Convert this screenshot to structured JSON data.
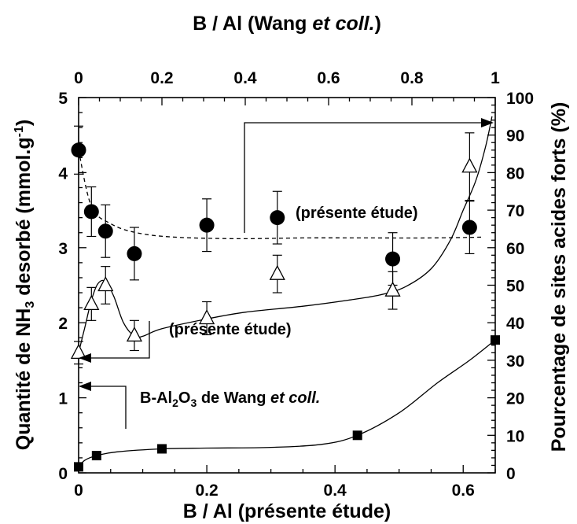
{
  "chart_data": {
    "type": "scatter",
    "xlabel_bottom": "B / Al (présente étude)",
    "xlabel_top_main": "B / Al (Wang ",
    "xlabel_top_italic": "et coll.",
    "xlabel_top_end": ")",
    "ylabel_left_a": "Quantité de NH",
    "ylabel_left_sub": "3",
    "ylabel_left_b": " desorbé (mmol.g",
    "ylabel_left_sup": "-1",
    "ylabel_left_c": ")",
    "ylabel_right": "Pourcentage de sites acides forts (%)",
    "xlim_bottom": [
      0,
      0.65
    ],
    "xlim_top": [
      0,
      1
    ],
    "ylim_left": [
      0,
      5
    ],
    "ylim_right": [
      0,
      100
    ],
    "x_bottom_ticks": [
      "0",
      "0.2",
      "0.4",
      "0.6"
    ],
    "x_top_ticks": [
      "0",
      "0.2",
      "0.4",
      "0.6",
      "0.8",
      "1"
    ],
    "y_left_ticks": [
      "0",
      "1",
      "2",
      "3",
      "4",
      "5"
    ],
    "y_right_ticks": [
      "0",
      "10",
      "20",
      "30",
      "40",
      "50",
      "60",
      "70",
      "80",
      "90",
      "100"
    ],
    "series": [
      {
        "marker": "filled-circle",
        "axis": "left",
        "points": [
          {
            "x": 0.0,
            "y": 4.3,
            "err": 0.32
          },
          {
            "x": 0.02,
            "y": 3.48,
            "err": 0.33
          },
          {
            "x": 0.042,
            "y": 3.22,
            "err": 0.35
          },
          {
            "x": 0.087,
            "y": 2.92,
            "err": 0.35
          },
          {
            "x": 0.2,
            "y": 3.3,
            "err": 0.35
          },
          {
            "x": 0.31,
            "y": 3.4,
            "err": 0.35
          },
          {
            "x": 0.49,
            "y": 2.85,
            "err": 0.35
          },
          {
            "x": 0.61,
            "y": 3.27,
            "err": 0.35
          }
        ],
        "fit_line": "dashed",
        "fit": [
          [
            0.0,
            4.3
          ],
          [
            0.02,
            3.55
          ],
          [
            0.05,
            3.32
          ],
          [
            0.09,
            3.2
          ],
          [
            0.15,
            3.14
          ],
          [
            0.25,
            3.12
          ],
          [
            0.35,
            3.13
          ],
          [
            0.45,
            3.13
          ],
          [
            0.55,
            3.13
          ],
          [
            0.63,
            3.14
          ]
        ]
      },
      {
        "marker": "open-triangle",
        "axis": "left",
        "points": [
          {
            "x": 0.0,
            "y": 1.6,
            "err": 0.15
          },
          {
            "x": 0.02,
            "y": 2.25,
            "err": 0.22
          },
          {
            "x": 0.042,
            "y": 2.5,
            "err": 0.25
          },
          {
            "x": 0.087,
            "y": 1.83,
            "err": 0.2
          },
          {
            "x": 0.2,
            "y": 2.06,
            "err": 0.22
          },
          {
            "x": 0.31,
            "y": 2.65,
            "err": 0.25
          },
          {
            "x": 0.49,
            "y": 2.43,
            "err": 0.25
          },
          {
            "x": 0.61,
            "y": 4.08,
            "err": 0.45
          }
        ],
        "fit_line": "solid",
        "fit": [
          [
            0.0,
            1.6
          ],
          [
            0.01,
            1.95
          ],
          [
            0.02,
            2.3
          ],
          [
            0.03,
            2.52
          ],
          [
            0.042,
            2.55
          ],
          [
            0.055,
            2.35
          ],
          [
            0.07,
            2.0
          ],
          [
            0.087,
            1.82
          ],
          [
            0.1,
            1.82
          ],
          [
            0.13,
            1.92
          ],
          [
            0.2,
            2.05
          ],
          [
            0.26,
            2.14
          ],
          [
            0.35,
            2.22
          ],
          [
            0.42,
            2.3
          ],
          [
            0.47,
            2.37
          ],
          [
            0.51,
            2.48
          ],
          [
            0.55,
            2.72
          ],
          [
            0.58,
            3.1
          ],
          [
            0.6,
            3.5
          ],
          [
            0.62,
            3.9
          ],
          [
            0.635,
            4.35
          ],
          [
            0.645,
            4.75
          ]
        ]
      },
      {
        "marker": "filled-square",
        "axis": "left",
        "points": [
          {
            "x": 0.0,
            "y": 0.08
          },
          {
            "x": 0.028,
            "y": 0.23
          },
          {
            "x": 0.13,
            "y": 0.32
          },
          {
            "x": 0.435,
            "y": 0.5
          },
          {
            "x": 0.65,
            "y": 1.77
          }
        ],
        "fit_line": "solid",
        "fit": [
          [
            0.0,
            0.08
          ],
          [
            0.01,
            0.17
          ],
          [
            0.028,
            0.23
          ],
          [
            0.06,
            0.28
          ],
          [
            0.13,
            0.32
          ],
          [
            0.2,
            0.33
          ],
          [
            0.3,
            0.34
          ],
          [
            0.38,
            0.38
          ],
          [
            0.435,
            0.5
          ],
          [
            0.5,
            0.8
          ],
          [
            0.56,
            1.2
          ],
          [
            0.61,
            1.5
          ],
          [
            0.65,
            1.77
          ]
        ]
      }
    ],
    "annotations": [
      {
        "text": "(présente étude)"
      },
      {
        "text": "(présente étude)"
      },
      {
        "text_a": "B-Al",
        "sub1": "2",
        "text_b": "O",
        "sub2": "3",
        "text_c": " de Wang ",
        "italic": "et coll."
      }
    ]
  }
}
